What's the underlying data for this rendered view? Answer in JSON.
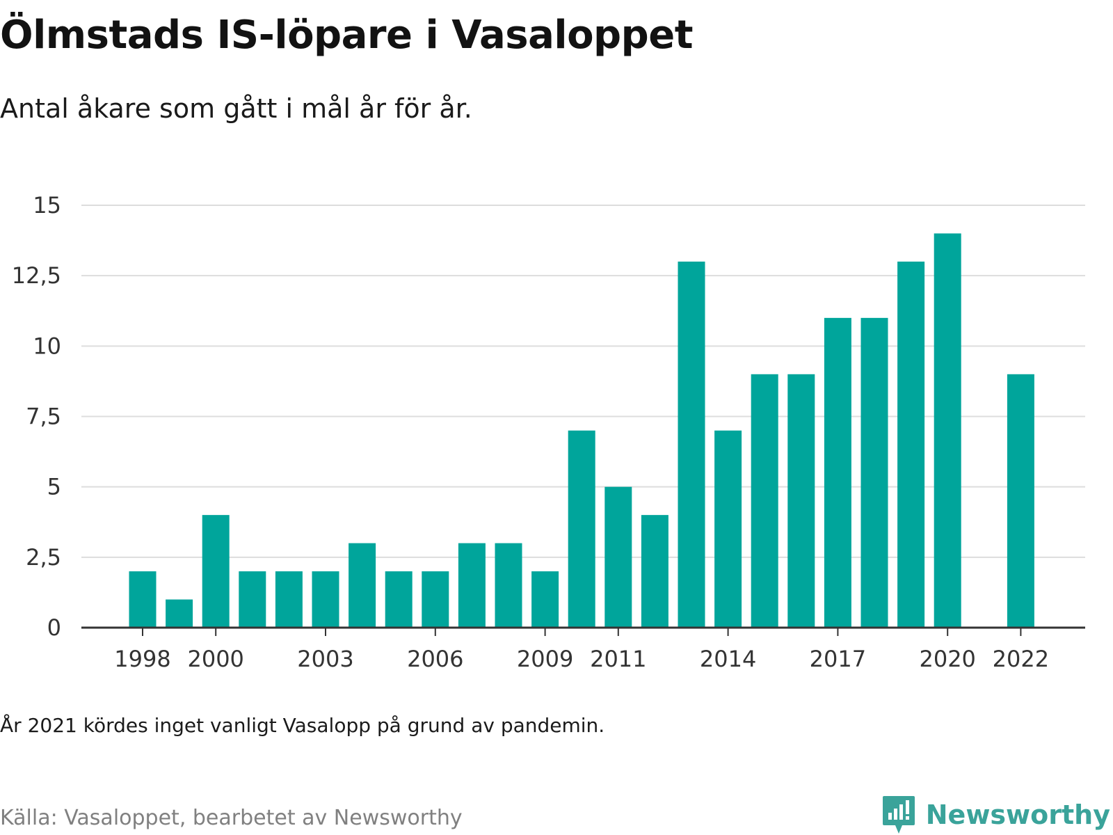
{
  "header": {
    "title": "Ölmstads IS-löpare i Vasaloppet",
    "subtitle": "Antal åkare som gått i mål år för år."
  },
  "footer": {
    "note": "År 2021 kördes inget vanligt Vasalopp på grund av pandemin.",
    "source": "Källa: Vasaloppet, bearbetet av Newsworthy",
    "brand": "Newsworthy"
  },
  "colors": {
    "bar": "#00a59b",
    "grid": "#dddddd",
    "axis": "#333333",
    "brand": "#3aa39a"
  },
  "chart_data": {
    "type": "bar",
    "title": "Ölmstads IS-löpare i Vasaloppet",
    "subtitle": "Antal åkare som gått i mål år för år.",
    "xlabel": "",
    "ylabel": "",
    "x": [
      1998,
      1999,
      2000,
      2001,
      2002,
      2003,
      2004,
      2005,
      2006,
      2007,
      2008,
      2009,
      2010,
      2011,
      2012,
      2013,
      2014,
      2015,
      2016,
      2017,
      2018,
      2019,
      2020,
      2021,
      2022
    ],
    "values": [
      2,
      1,
      4,
      2,
      2,
      2,
      3,
      2,
      2,
      3,
      3,
      2,
      7,
      5,
      4,
      13,
      7,
      9,
      9,
      11,
      11,
      13,
      14,
      null,
      9
    ],
    "ylim": [
      0,
      15
    ],
    "yticks": [
      0,
      2.5,
      5,
      7.5,
      10,
      12.5,
      15
    ],
    "ytick_labels": [
      "0",
      "2,5",
      "5",
      "7,5",
      "10",
      "12,5",
      "15"
    ],
    "xticks": [
      1998,
      2000,
      2003,
      2006,
      2009,
      2011,
      2014,
      2017,
      2020,
      2022
    ],
    "xtick_labels": [
      "1998",
      "2000",
      "2003",
      "2006",
      "2009",
      "2011",
      "2014",
      "2017",
      "2020",
      "2022"
    ],
    "grid": true
  }
}
